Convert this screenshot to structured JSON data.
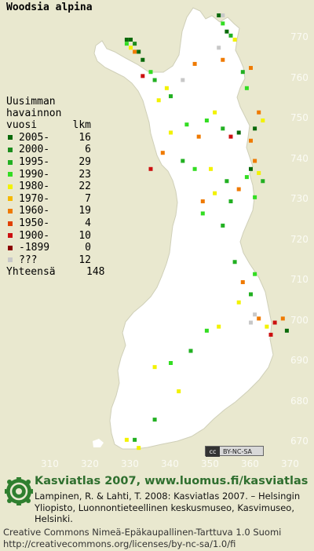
{
  "title": "Woodsia alpina",
  "legend": {
    "header_line1": "Uusimman",
    "header_line2": "havainnon",
    "header_col_year": "vuosi",
    "header_col_count": "lkm",
    "items": [
      {
        "label": "2005-",
        "count": "16",
        "color": "#0a6a0a"
      },
      {
        "label": "2000-",
        "count": "6",
        "color": "#1d8c1d"
      },
      {
        "label": "1995-",
        "count": "29",
        "color": "#22b022"
      },
      {
        "label": "1990-",
        "count": "23",
        "color": "#33dd22"
      },
      {
        "label": "1980-",
        "count": "22",
        "color": "#f2f200"
      },
      {
        "label": "1970-",
        "count": "7",
        "color": "#f5b800"
      },
      {
        "label": "1960-",
        "count": "19",
        "color": "#ef7a00"
      },
      {
        "label": "1950-",
        "count": "4",
        "color": "#e04000"
      },
      {
        "label": "1900-",
        "count": "10",
        "color": "#cc1010"
      },
      {
        "label": "-1899",
        "count": "0",
        "color": "#8b0000"
      },
      {
        "label": "???",
        "count": "12",
        "color": "#c8c8c8"
      }
    ],
    "total_label": "Yhteensä",
    "total_count": "148"
  },
  "axes": {
    "y_ticks": [
      "770",
      "760",
      "750",
      "740",
      "730",
      "720",
      "710",
      "700",
      "690",
      "680",
      "670"
    ],
    "x_ticks": [
      "310",
      "320",
      "330",
      "340",
      "350",
      "360",
      "370"
    ]
  },
  "cc_badge": {
    "icon": "cc",
    "text": "BY-NC-SA"
  },
  "footer": {
    "title": "Kasviatlas 2007, www.luomus.fi/kasviatlas",
    "citation": "Lampinen, R. & Lahti, T. 2008: Kasviatlas 2007. – Helsingin Yliopisto, Luonnontieteellinen keskusmuseo, Kasvimuseo, Helsinki.",
    "license_line1": "Creative Commons Nimeä-Epäkaupallinen-Tarttuva 1.0 Suomi",
    "license_line2": "http://creativecommons.org/licenses/by-nc-sa/1.0/fi"
  },
  "observations": [
    {
      "e": 329,
      "n": 770,
      "cat": 0
    },
    {
      "e": 330,
      "n": 770,
      "cat": 0
    },
    {
      "e": 329,
      "n": 769,
      "cat": 3
    },
    {
      "e": 331,
      "n": 769,
      "cat": 1
    },
    {
      "e": 330,
      "n": 768,
      "cat": 4
    },
    {
      "e": 331,
      "n": 767,
      "cat": 6
    },
    {
      "e": 332,
      "n": 767,
      "cat": 0
    },
    {
      "e": 333,
      "n": 765,
      "cat": 0
    },
    {
      "e": 333,
      "n": 761,
      "cat": 8
    },
    {
      "e": 335,
      "n": 762,
      "cat": 3
    },
    {
      "e": 336,
      "n": 760,
      "cat": 2
    },
    {
      "e": 339,
      "n": 758,
      "cat": 4
    },
    {
      "e": 337,
      "n": 755,
      "cat": 4
    },
    {
      "e": 340,
      "n": 756,
      "cat": 2
    },
    {
      "e": 343,
      "n": 760,
      "cat": 10
    },
    {
      "e": 346,
      "n": 764,
      "cat": 6
    },
    {
      "e": 352,
      "n": 776,
      "cat": 0
    },
    {
      "e": 353,
      "n": 776,
      "cat": 10
    },
    {
      "e": 354,
      "n": 772,
      "cat": 0
    },
    {
      "e": 353,
      "n": 774,
      "cat": 3
    },
    {
      "e": 355,
      "n": 771,
      "cat": 2
    },
    {
      "e": 352,
      "n": 768,
      "cat": 10
    },
    {
      "e": 353,
      "n": 765,
      "cat": 6
    },
    {
      "e": 356,
      "n": 770,
      "cat": 4
    },
    {
      "e": 358,
      "n": 762,
      "cat": 2
    },
    {
      "e": 360,
      "n": 763,
      "cat": 6
    },
    {
      "e": 359,
      "n": 758,
      "cat": 3
    },
    {
      "e": 362,
      "n": 752,
      "cat": 6
    },
    {
      "e": 363,
      "n": 750,
      "cat": 4
    },
    {
      "e": 361,
      "n": 748,
      "cat": 0
    },
    {
      "e": 360,
      "n": 745,
      "cat": 6
    },
    {
      "e": 357,
      "n": 747,
      "cat": 0
    },
    {
      "e": 355,
      "n": 746,
      "cat": 8
    },
    {
      "e": 353,
      "n": 748,
      "cat": 2
    },
    {
      "e": 351,
      "n": 752,
      "cat": 4
    },
    {
      "e": 349,
      "n": 750,
      "cat": 3
    },
    {
      "e": 347,
      "n": 746,
      "cat": 6
    },
    {
      "e": 344,
      "n": 749,
      "cat": 3
    },
    {
      "e": 340,
      "n": 747,
      "cat": 4
    },
    {
      "e": 338,
      "n": 742,
      "cat": 6
    },
    {
      "e": 343,
      "n": 740,
      "cat": 2
    },
    {
      "e": 346,
      "n": 738,
      "cat": 3
    },
    {
      "e": 350,
      "n": 738,
      "cat": 4
    },
    {
      "e": 354,
      "n": 735,
      "cat": 2
    },
    {
      "e": 357,
      "n": 733,
      "cat": 6
    },
    {
      "e": 359,
      "n": 736,
      "cat": 3
    },
    {
      "e": 360,
      "n": 738,
      "cat": 0
    },
    {
      "e": 361,
      "n": 740,
      "cat": 6
    },
    {
      "e": 362,
      "n": 737,
      "cat": 4
    },
    {
      "e": 363,
      "n": 735,
      "cat": 2
    },
    {
      "e": 361,
      "n": 731,
      "cat": 3
    },
    {
      "e": 355,
      "n": 730,
      "cat": 2
    },
    {
      "e": 351,
      "n": 732,
      "cat": 4
    },
    {
      "e": 348,
      "n": 730,
      "cat": 6
    },
    {
      "e": 335,
      "n": 738,
      "cat": 8
    },
    {
      "e": 356,
      "n": 715,
      "cat": 2
    },
    {
      "e": 358,
      "n": 710,
      "cat": 6
    },
    {
      "e": 361,
      "n": 712,
      "cat": 3
    },
    {
      "e": 360,
      "n": 707,
      "cat": 2
    },
    {
      "e": 357,
      "n": 705,
      "cat": 4
    },
    {
      "e": 360,
      "n": 700,
      "cat": 10
    },
    {
      "e": 362,
      "n": 701,
      "cat": 6
    },
    {
      "e": 364,
      "n": 699,
      "cat": 4
    },
    {
      "e": 366,
      "n": 700,
      "cat": 8
    },
    {
      "e": 368,
      "n": 701,
      "cat": 6
    },
    {
      "e": 365,
      "n": 697,
      "cat": 8
    },
    {
      "e": 369,
      "n": 698,
      "cat": 0
    },
    {
      "e": 361,
      "n": 702,
      "cat": 10
    },
    {
      "e": 352,
      "n": 699,
      "cat": 4
    },
    {
      "e": 349,
      "n": 698,
      "cat": 3
    },
    {
      "e": 345,
      "n": 693,
      "cat": 2
    },
    {
      "e": 336,
      "n": 689,
      "cat": 4
    },
    {
      "e": 340,
      "n": 690,
      "cat": 3
    },
    {
      "e": 342,
      "n": 683,
      "cat": 4
    },
    {
      "e": 336,
      "n": 676,
      "cat": 2
    },
    {
      "e": 329,
      "n": 671,
      "cat": 4
    },
    {
      "e": 331,
      "n": 671,
      "cat": 2
    },
    {
      "e": 332,
      "n": 669,
      "cat": 4
    },
    {
      "e": 353,
      "n": 724,
      "cat": 2
    },
    {
      "e": 348,
      "n": 727,
      "cat": 3
    }
  ]
}
